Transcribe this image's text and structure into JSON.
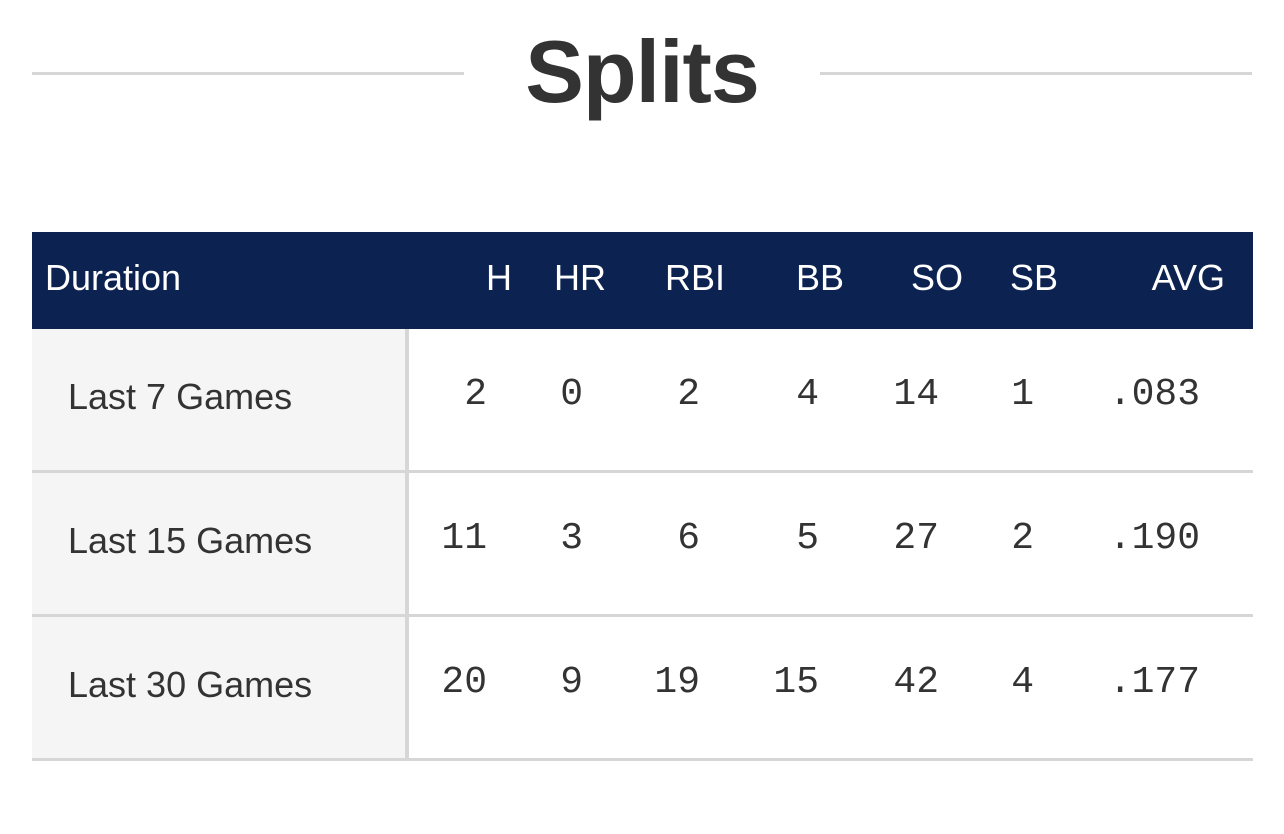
{
  "section": {
    "title": "Splits"
  },
  "table": {
    "headers": {
      "duration": "Duration",
      "h": "H",
      "hr": "HR",
      "rbi": "RBI",
      "bb": "BB",
      "so": "SO",
      "sb": "SB",
      "avg": "AVG"
    },
    "rows": [
      {
        "duration": "Last 7 Games",
        "h": "2",
        "hr": "0",
        "rbi": "2",
        "bb": "4",
        "so": "14",
        "sb": "1",
        "avg": ".083"
      },
      {
        "duration": "Last 15 Games",
        "h": "11",
        "hr": "3",
        "rbi": "6",
        "bb": "5",
        "so": "27",
        "sb": "2",
        "avg": ".190"
      },
      {
        "duration": "Last 30 Games",
        "h": "20",
        "hr": "9",
        "rbi": "19",
        "bb": "15",
        "so": "42",
        "sb": "4",
        "avg": ".177"
      }
    ]
  },
  "colors": {
    "header_bg": "#0c2250",
    "header_text": "#ffffff",
    "label_cell_bg": "#f5f5f5",
    "divider": "#d6d6d6",
    "text": "#333333"
  }
}
